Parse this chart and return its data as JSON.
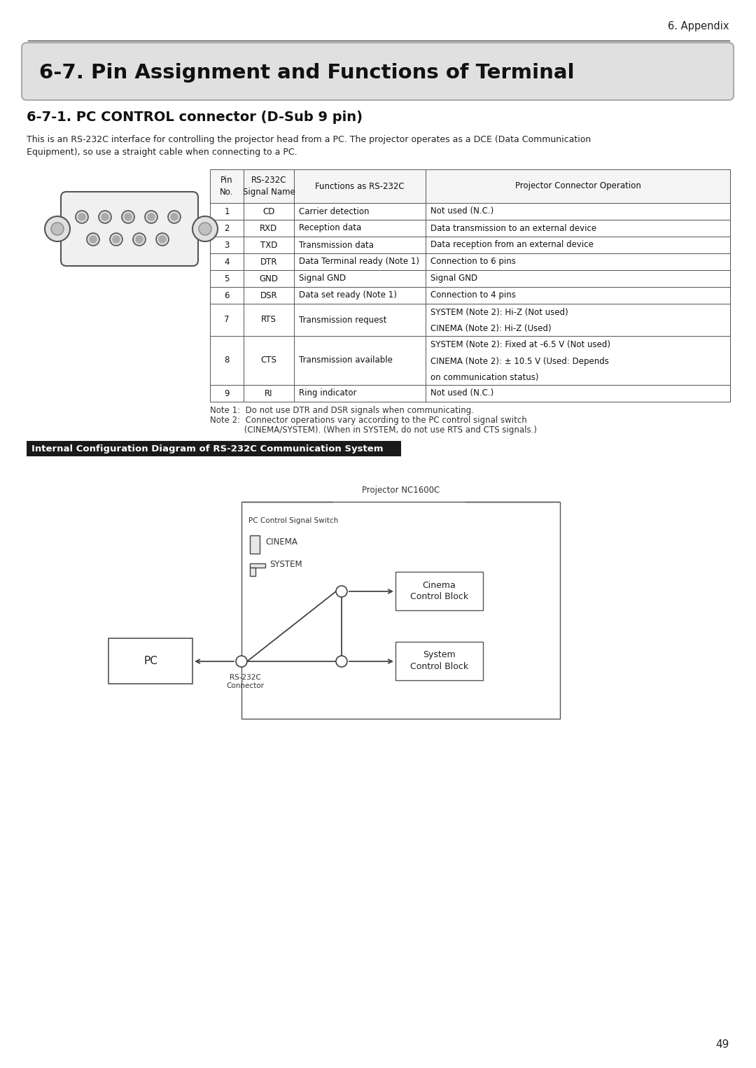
{
  "page_title": "6. Appendix",
  "section_title": "6-7. Pin Assignment and Functions of Terminal",
  "subsection_title": "6-7-1. PC CONTROL connector (D-Sub 9 pin)",
  "description_line1": "This is an RS-232C interface for controlling the projector head from a PC. The projector operates as a DCE (Data Communication",
  "description_line2": "Equipment), so use a straight cable when connecting to a PC.",
  "table_headers": [
    "Pin\nNo.",
    "RS-232C\nSignal Name",
    "Functions as RS-232C",
    "Projector Connector Operation"
  ],
  "table_rows": [
    [
      "1",
      "CD",
      "Carrier detection",
      "Not used (N.C.)"
    ],
    [
      "2",
      "RXD",
      "Reception data",
      "Data transmission to an external device"
    ],
    [
      "3",
      "TXD",
      "Transmission data",
      "Data reception from an external device"
    ],
    [
      "4",
      "DTR",
      "Data Terminal ready (Note 1)",
      "Connection to 6 pins"
    ],
    [
      "5",
      "GND",
      "Signal GND",
      "Signal GND"
    ],
    [
      "6",
      "DSR",
      "Data set ready (Note 1)",
      "Connection to 4 pins"
    ],
    [
      "7",
      "RTS",
      "Transmission request",
      "SYSTEM (Note 2): Hi-Z (Not used)\nCINEMA (Note 2): Hi-Z (Used)"
    ],
    [
      "8",
      "CTS",
      "Transmission available",
      "SYSTEM (Note 2): Fixed at -6.5 V (Not used)\nCINEMA (Note 2): ± 10.5 V (Used: Depends\non communication status)"
    ],
    [
      "9",
      "RI",
      "Ring indicator",
      "Not used (N.C.)"
    ]
  ],
  "note1": "Note 1:  Do not use DTR and DSR signals when communicating.",
  "note2a": "Note 2:  Connector operations vary according to the PC control signal switch",
  "note2b": "             (CINEMA/SYSTEM). (When in SYSTEM, do not use RTS and CTS signals.)",
  "diagram_section_title": "Internal Configuration Diagram of RS-232C Communication System",
  "page_number": "49",
  "bg_color": "#ffffff",
  "diagram_header_bg": "#1a1a1a",
  "diagram_header_text": "#ffffff"
}
